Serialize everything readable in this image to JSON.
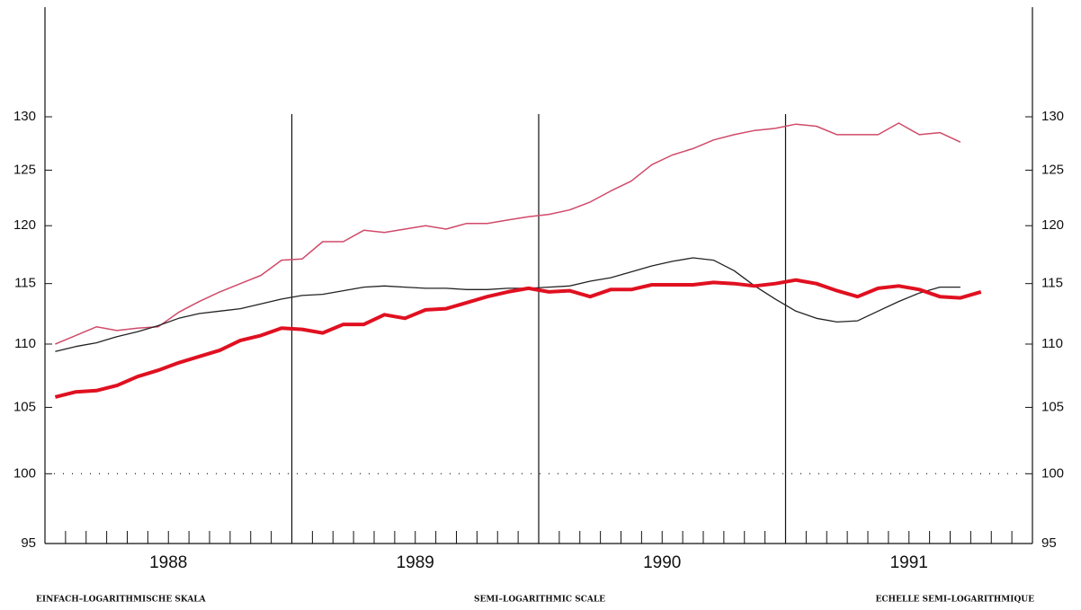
{
  "chart_data": {
    "type": "line",
    "x": [
      0.5,
      1.5,
      2.5,
      3.5,
      4.5,
      5.5,
      6.5,
      7.5,
      8.5,
      9.5,
      10.5,
      11.5,
      12.5,
      13.5,
      14.5,
      15.5,
      16.5,
      17.5,
      18.5,
      19.5,
      20.5,
      21.5,
      22.5,
      23.5,
      24.5,
      25.5,
      26.5,
      27.5,
      28.5,
      29.5,
      30.5,
      31.5,
      32.5,
      33.5,
      34.5,
      35.5,
      36.5,
      37.5,
      38.5,
      39.5,
      40.5,
      41.5,
      42.5,
      43.5,
      44.5,
      45.5
    ],
    "series": [
      {
        "color": "#d04a6a",
        "width": 1.5,
        "values": [
          110,
          110.7,
          111.4,
          111.1,
          111.3,
          111.4,
          112.6,
          113.5,
          114.3,
          115,
          115.7,
          117,
          117.1,
          118.6,
          118.6,
          119.6,
          119.4,
          119.7,
          120,
          119.7,
          120.2,
          120.2,
          120.5,
          120.8,
          121,
          121.4,
          122.1,
          123.1,
          124,
          125.5,
          126.4,
          127,
          127.8,
          128.3,
          128.7,
          128.9,
          129.3,
          129.1,
          128.3,
          128.3,
          128.3,
          129.4,
          128.3,
          128.5,
          127.6,
          null
        ]
      },
      {
        "color": "#222222",
        "width": 1.3,
        "values": [
          109.4,
          109.8,
          110.1,
          110.6,
          111,
          111.5,
          112.1,
          112.5,
          112.7,
          112.9,
          113.3,
          113.7,
          114,
          114.1,
          114.4,
          114.7,
          114.8,
          114.7,
          114.6,
          114.6,
          114.5,
          114.5,
          114.6,
          114.6,
          114.7,
          114.8,
          115.2,
          115.5,
          116,
          116.5,
          116.9,
          117.2,
          117,
          116.1,
          114.8,
          113.7,
          112.7,
          112.1,
          111.8,
          111.9,
          112.7,
          113.5,
          114.2,
          114.7,
          114.7,
          null
        ]
      },
      {
        "color": "#e01020",
        "width": 4,
        "values": [
          105.8,
          106.2,
          106.3,
          106.7,
          107.4,
          107.9,
          108.5,
          109,
          109.5,
          110.3,
          110.7,
          111.3,
          111.2,
          110.9,
          111.6,
          111.6,
          112.4,
          112.1,
          112.8,
          112.9,
          113.4,
          113.9,
          114.3,
          114.6,
          114.3,
          114.4,
          113.9,
          114.5,
          114.5,
          114.9,
          114.9,
          114.9,
          115.1,
          115,
          114.8,
          115,
          115.3,
          115,
          114.4,
          113.9,
          114.6,
          114.8,
          114.5,
          113.9,
          113.8,
          114.3
        ]
      }
    ],
    "xlim": [
      0,
      48
    ],
    "xticks": [
      {
        "value": 6,
        "label": "1988"
      },
      {
        "value": 18,
        "label": "1989"
      },
      {
        "value": 30,
        "label": "1990"
      },
      {
        "value": 42,
        "label": "1991"
      }
    ],
    "xminor_step": 1,
    "vlines": [
      12,
      24,
      36
    ],
    "ylim": [
      95,
      130
    ],
    "yticks": [
      95,
      100,
      105,
      110,
      115,
      120,
      125,
      130
    ],
    "yscale": "log",
    "hline": 100,
    "footer": [
      "EINFACH–LOGARITHMISCHE SKALA",
      "SEMI–LOGARITHMIC SCALE",
      "ECHELLE SEMI–LOGARITHMIQUE"
    ]
  }
}
